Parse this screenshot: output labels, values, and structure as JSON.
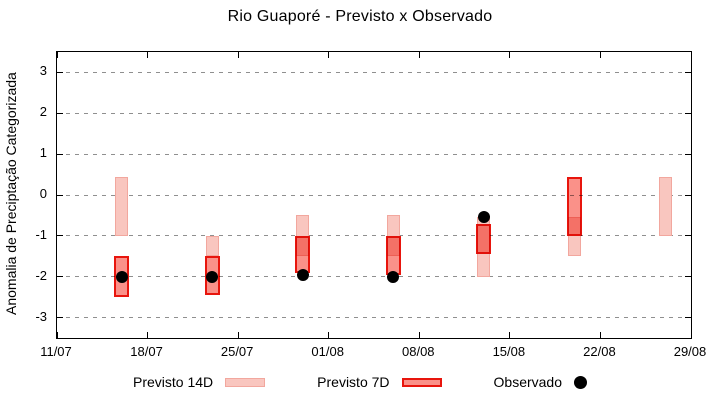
{
  "title": "Rio Guaporé - Previsto x Observado",
  "chart_data": {
    "type": "bar",
    "subtype": "range-bars-with-points",
    "title": "Rio Guaporé - Previsto x Observado",
    "xlabel": "",
    "ylabel": "Anomalia de Preciptação Categorizada",
    "ylim": [
      -3.5,
      3.5
    ],
    "yticks": [
      -3,
      -2,
      -1,
      0,
      1,
      2,
      3
    ],
    "x_axis_days_span": [
      0,
      49
    ],
    "xticks": [
      {
        "day": 0,
        "label": "11/07"
      },
      {
        "day": 7,
        "label": "18/07"
      },
      {
        "day": 14,
        "label": "25/07"
      },
      {
        "day": 21,
        "label": "01/08"
      },
      {
        "day": 28,
        "label": "08/08"
      },
      {
        "day": 35,
        "label": "15/08"
      },
      {
        "day": 42,
        "label": "22/08"
      },
      {
        "day": 49,
        "label": "29/08"
      }
    ],
    "grid": "horizontal dashed gray, on",
    "legend_position": "bottom-center",
    "series": [
      {
        "name": "Previsto 14D",
        "type": "range-bar",
        "fill": "#f9c6bf",
        "border": "#f2a79e"
      },
      {
        "name": "Previsto 7D",
        "type": "range-bar",
        "fill": "#fa9189",
        "border": "#e8150d"
      },
      {
        "name": "Observado",
        "type": "point",
        "color": "#000000"
      }
    ],
    "groups": [
      {
        "date": "16/07",
        "day": 5,
        "previsto14": [
          -1.0,
          0.45
        ],
        "previsto7": [
          -2.5,
          -1.5
        ],
        "observado": -2.0
      },
      {
        "date": "23/07",
        "day": 12,
        "previsto14": [
          -1.5,
          -1.0
        ],
        "previsto7": [
          -2.45,
          -1.5
        ],
        "observado": -2.0
      },
      {
        "date": "30/07",
        "day": 19,
        "previsto14": [
          -1.5,
          -0.5
        ],
        "previsto7": [
          -1.9,
          -1.0
        ],
        "observado": -1.95
      },
      {
        "date": "06/08",
        "day": 26,
        "previsto14": [
          -1.5,
          -0.5
        ],
        "previsto7": [
          -1.95,
          -1.0
        ],
        "observado": -2.0
      },
      {
        "date": "13/08",
        "day": 33,
        "previsto14": [
          -2.0,
          -0.55
        ],
        "previsto7": [
          -1.45,
          -0.7
        ],
        "observado": -0.55
      },
      {
        "date": "20/08",
        "day": 40,
        "previsto14": [
          -1.5,
          -0.55
        ],
        "previsto7": [
          -1.0,
          0.45
        ],
        "observado": null
      },
      {
        "date": "27/08",
        "day": 47,
        "previsto14": [
          -1.0,
          0.45
        ],
        "previsto7": null,
        "observado": null
      }
    ]
  },
  "legend": {
    "items": [
      {
        "label": "Previsto 14D",
        "swatch": "light-pink-box"
      },
      {
        "label": "Previsto 7D",
        "swatch": "red-box"
      },
      {
        "label": "Observado",
        "swatch": "black-dot"
      }
    ]
  }
}
